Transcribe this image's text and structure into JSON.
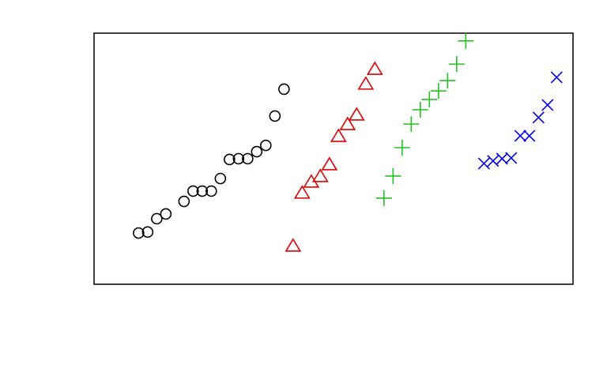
{
  "chart_data": {
    "type": "scatter",
    "xlim": [
      -3.9,
      48.8
    ],
    "ylim": [
      0,
      100
    ],
    "series": [
      {
        "color": "#000000",
        "marker": "circle",
        "x": [
          1,
          2,
          3,
          4,
          6,
          7,
          8,
          9,
          10,
          11,
          12,
          13,
          14,
          15,
          16,
          17
        ],
        "values": [
          20.4,
          20.8,
          26.1,
          28.0,
          33.0,
          37.1,
          37.1,
          37.1,
          42.1,
          49.7,
          50.0,
          50.0,
          52.8,
          55.3,
          67.0,
          77.7
        ]
      },
      {
        "color": "#df0000",
        "marker": "triangle",
        "x": [
          18,
          19,
          20,
          21,
          22,
          23,
          24,
          25,
          26,
          27
        ],
        "values": [
          15.1,
          36.2,
          40.6,
          42.8,
          47.5,
          58.8,
          63.5,
          67.3,
          79.6,
          85.5
        ]
      },
      {
        "color": "#22c422",
        "marker": "plus",
        "x": [
          28,
          29,
          30,
          31,
          32,
          33,
          34,
          35,
          36,
          37
        ],
        "values": [
          34.3,
          43.1,
          54.4,
          63.8,
          69.5,
          73.6,
          77.0,
          81.1,
          87.7,
          96.9
        ]
      },
      {
        "color": "#0000ee",
        "marker": "cross",
        "x": [
          39,
          40,
          41,
          42,
          43,
          44,
          45,
          46,
          47
        ],
        "values": [
          48.1,
          49.1,
          50.0,
          50.3,
          59.1,
          59.1,
          66.4,
          71.4,
          82.4
        ]
      }
    ]
  }
}
